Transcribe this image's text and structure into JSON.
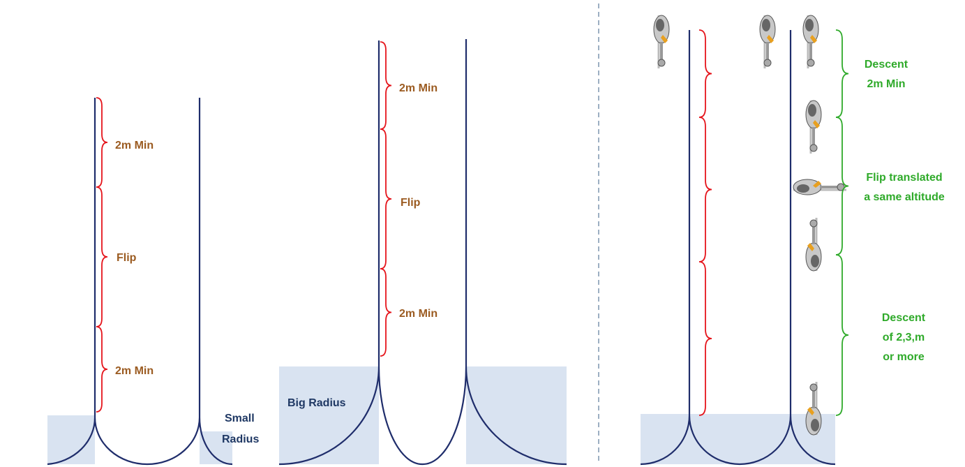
{
  "left": {
    "labels": [
      "2m Min",
      "Flip",
      "2m Min"
    ],
    "radius": [
      "Small",
      "Radius"
    ]
  },
  "middle": {
    "labels": [
      "2m Min",
      "Flip",
      "2m Min"
    ],
    "radius": "Big Radius"
  },
  "right": {
    "labels": [
      [
        "Descent",
        "2m Min"
      ],
      [
        "Flip translated",
        "a same altitude"
      ],
      [
        "Descent",
        "of 2,3,m",
        "or more"
      ]
    ]
  }
}
